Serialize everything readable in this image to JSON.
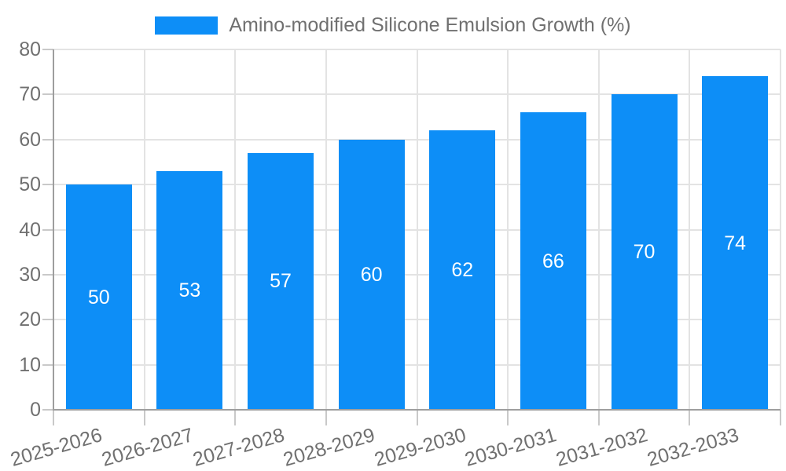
{
  "chart_data": {
    "type": "bar",
    "title": "",
    "xlabel": "",
    "ylabel": "",
    "categories": [
      "2025-2026",
      "2026-2027",
      "2027-2028",
      "2028-2029",
      "2029-2030",
      "2030-2031",
      "2031-2032",
      "2032-2033"
    ],
    "series": [
      {
        "name": "Amino-modified Silicone Emulsion Growth (%)",
        "values": [
          50,
          53,
          57,
          60,
          62,
          66,
          70,
          74
        ]
      }
    ],
    "bar_value_labels": [
      50,
      53,
      57,
      60,
      62,
      66,
      70,
      74
    ],
    "ylim": [
      0,
      80
    ],
    "yticks": [
      0,
      10,
      20,
      30,
      40,
      50,
      60,
      70,
      80
    ],
    "grid": true,
    "legend_position": "top",
    "x_tick_rotation_deg": -16,
    "colors": {
      "bar": "#0d8ef7",
      "text": "#707070",
      "grid": "#e3e3e3",
      "tick": "#c9c9c9",
      "axis": "#9e9e9e",
      "value_label": "#ffffff",
      "background": "#ffffff"
    }
  }
}
